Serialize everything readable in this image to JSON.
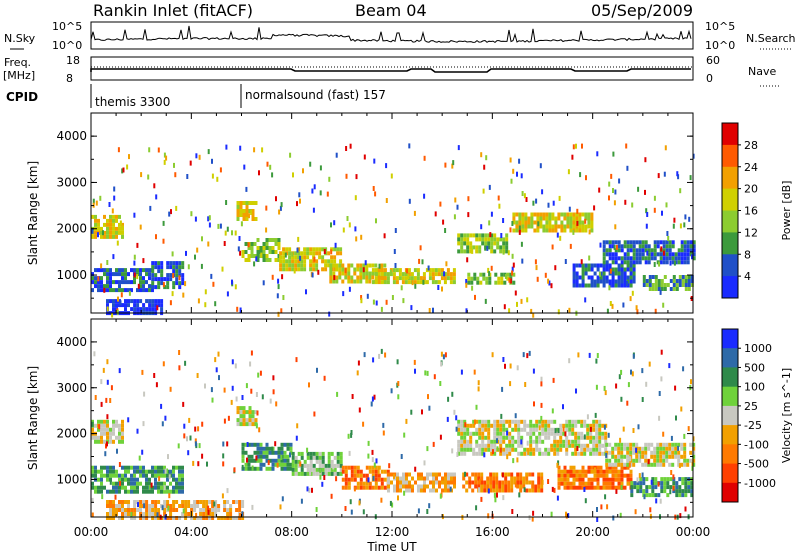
{
  "header": {
    "station": "Rankin Inlet (fitACF)",
    "beam": "Beam 04",
    "date": "05/Sep/2009"
  },
  "top_panels": {
    "nsky_label": "N.Sky",
    "nsky_ticks": [
      "10^5",
      "10^0"
    ],
    "nsearch_label": "N.Search",
    "nsearch_ticks": [
      "10^5",
      "10^0"
    ],
    "freq_label": "Freq.",
    "freq_unit": "[MHz]",
    "freq_ticks": [
      "18",
      "8"
    ],
    "nave_label": "Nave",
    "nave_ticks": [
      "60",
      "0"
    ],
    "cpid_label": "CPID",
    "cpid_segments": [
      {
        "name": "themis 3300",
        "start_hour": 0
      },
      {
        "name": "normalsound (fast) 157",
        "start_hour": 6
      }
    ]
  },
  "chart_data": [
    {
      "type": "heatmap",
      "title": "",
      "xlabel": "Time UT",
      "ylabel": "Slant Range [km]",
      "xlim": [
        0,
        24
      ],
      "ylim": [
        180,
        4500
      ],
      "x_ticks": [
        "00:00",
        "04:00",
        "08:00",
        "12:00",
        "16:00",
        "20:00",
        "00:00"
      ],
      "y_ticks": [
        1000,
        2000,
        3000,
        4000
      ],
      "colorbar": {
        "label": "Power [dB]",
        "ticks": [
          "28",
          "24",
          "20",
          "16",
          "12",
          "8",
          "4"
        ],
        "colors": [
          "#e00000",
          "#ff5a00",
          "#f2a000",
          "#cfcf00",
          "#8ccc30",
          "#3c9a3c",
          "#2050c8",
          "#1a2bff"
        ]
      },
      "bands": [
        {
          "t0": 0.0,
          "t1": 2.4,
          "r0": 700,
          "r1": 1150,
          "level": 6
        },
        {
          "t0": 0.0,
          "t1": 1.2,
          "r0": 1850,
          "r1": 2300,
          "level": 3
        },
        {
          "t0": 0.6,
          "t1": 2.8,
          "r0": 200,
          "r1": 480,
          "level": 7
        },
        {
          "t0": 2.4,
          "t1": 3.6,
          "r0": 750,
          "r1": 1300,
          "level": 6
        },
        {
          "t0": 6.0,
          "t1": 7.5,
          "r0": 1300,
          "r1": 1800,
          "level": 4
        },
        {
          "t0": 7.5,
          "t1": 10.0,
          "r0": 1100,
          "r1": 1600,
          "level": 3
        },
        {
          "t0": 9.5,
          "t1": 11.7,
          "r0": 850,
          "r1": 1250,
          "level": 3
        },
        {
          "t0": 11.2,
          "t1": 14.5,
          "r0": 850,
          "r1": 1150,
          "level": 3
        },
        {
          "t0": 14.6,
          "t1": 16.6,
          "r0": 1500,
          "r1": 1900,
          "level": 4
        },
        {
          "t0": 15.0,
          "t1": 16.8,
          "r0": 800,
          "r1": 1050,
          "level": 4
        },
        {
          "t0": 16.8,
          "t1": 20.0,
          "r0": 1950,
          "r1": 2350,
          "level": 3
        },
        {
          "t0": 19.2,
          "t1": 21.6,
          "r0": 800,
          "r1": 1250,
          "level": 6
        },
        {
          "t0": 20.4,
          "t1": 24.0,
          "r0": 1300,
          "r1": 1750,
          "level": 6
        },
        {
          "t0": 22.0,
          "t1": 24.0,
          "r0": 700,
          "r1": 1000,
          "level": 5
        },
        {
          "t0": 5.8,
          "t1": 6.6,
          "r0": 2250,
          "r1": 2600,
          "level": 3
        }
      ]
    },
    {
      "type": "heatmap",
      "title": "",
      "xlabel": "Time UT",
      "ylabel": "Slant Range [km]",
      "xlim": [
        0,
        24
      ],
      "ylim": [
        180,
        4500
      ],
      "x_ticks": [
        "00:00",
        "04:00",
        "08:00",
        "12:00",
        "16:00",
        "20:00",
        "00:00"
      ],
      "y_ticks": [
        1000,
        2000,
        3000,
        4000
      ],
      "colorbar": {
        "label": "Velocity [m s^-1]",
        "ticks": [
          "1000",
          "500",
          "100",
          "25",
          "-25",
          "-100",
          "-500",
          "-1000"
        ],
        "colors": [
          "#1a2bff",
          "#2e6aa8",
          "#2f8a4a",
          "#6fd23a",
          "#c8c8c0",
          "#f2a000",
          "#ff7a00",
          "#ff4000",
          "#e00000"
        ]
      },
      "bands": [
        {
          "t0": 0.0,
          "t1": 1.2,
          "r0": 1850,
          "r1": 2300,
          "level": 4
        },
        {
          "t0": 0.0,
          "t1": 3.6,
          "r0": 700,
          "r1": 1300,
          "level": 2
        },
        {
          "t0": 0.6,
          "t1": 6.0,
          "r0": 200,
          "r1": 550,
          "level": 5
        },
        {
          "t0": 5.8,
          "t1": 6.6,
          "r0": 2250,
          "r1": 2600,
          "level": 4
        },
        {
          "t0": 6.0,
          "t1": 8.0,
          "r0": 1200,
          "r1": 1800,
          "level": 2
        },
        {
          "t0": 8.0,
          "t1": 10.0,
          "r0": 1100,
          "r1": 1600,
          "level": 3
        },
        {
          "t0": 10.0,
          "t1": 11.8,
          "r0": 800,
          "r1": 1300,
          "level": 6
        },
        {
          "t0": 11.8,
          "t1": 14.5,
          "r0": 800,
          "r1": 1150,
          "level": 5
        },
        {
          "t0": 14.6,
          "t1": 20.5,
          "r0": 1600,
          "r1": 2300,
          "level": 4
        },
        {
          "t0": 14.8,
          "t1": 18.0,
          "r0": 800,
          "r1": 1150,
          "level": 6
        },
        {
          "t0": 18.6,
          "t1": 21.5,
          "r0": 800,
          "r1": 1300,
          "level": 6
        },
        {
          "t0": 20.5,
          "t1": 24.0,
          "r0": 1300,
          "r1": 1800,
          "level": 4
        },
        {
          "t0": 21.5,
          "t1": 24.0,
          "r0": 700,
          "r1": 1050,
          "level": 2
        }
      ]
    }
  ]
}
